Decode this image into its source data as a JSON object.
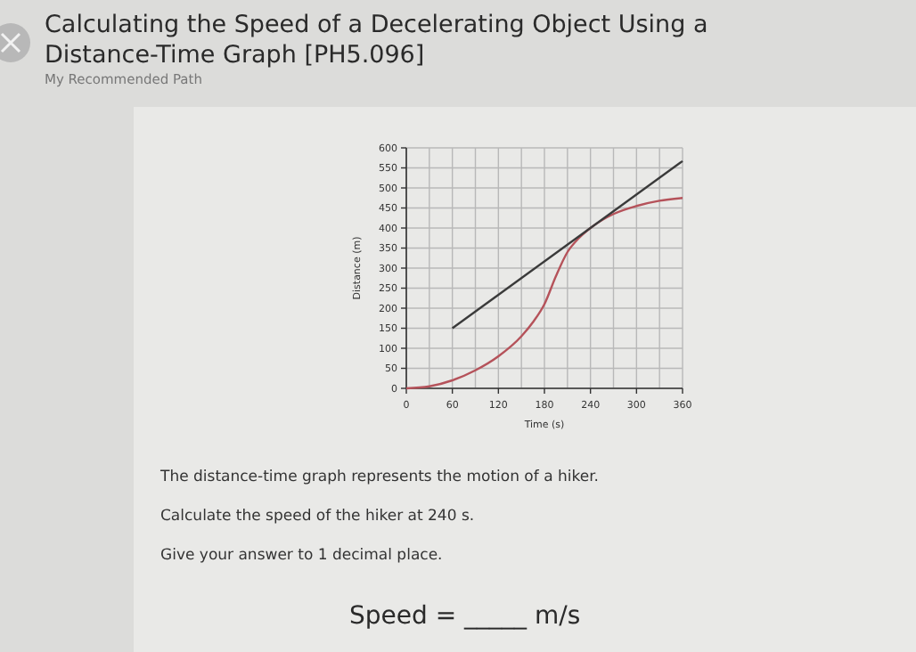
{
  "chart_data": {
    "type": "line",
    "title": "Calculating the Speed of a Decelerating Object Using a Distance-Time Graph [PH5.096]",
    "subtitle": "My Recommended Path",
    "xlabel": "Time (s)",
    "ylabel": "Distance (m)",
    "x": [
      0,
      30,
      60,
      90,
      120,
      150,
      165,
      180,
      195,
      210,
      225,
      240,
      270,
      300,
      330,
      360
    ],
    "series": [
      {
        "color": "#b5525a",
        "values": [
          0,
          5,
          20,
          45,
          80,
          130,
          165,
          210,
          280,
          340,
          375,
          400,
          435,
          455,
          468,
          475
        ]
      },
      {
        "type": "line",
        "color": "#3a3a3a",
        "x": [
          60,
          360
        ],
        "values": [
          150,
          567
        ]
      }
    ],
    "xlim": [
      0,
      360
    ],
    "ylim": [
      0,
      600
    ],
    "xticks": [
      0,
      60,
      120,
      180,
      240,
      300,
      360
    ],
    "yticks": [
      0,
      50,
      100,
      150,
      200,
      250,
      300,
      350,
      400,
      450,
      500,
      550,
      600
    ],
    "grid": true,
    "marker": "none",
    "line_style": "solid",
    "annotations": [
      "The distance-time graph represents the motion of a hiker.",
      "Calculate the speed of the hiker at 240 s.",
      "Give your answer to 1 decimal place.",
      "Speed = _____ m/s"
    ]
  }
}
